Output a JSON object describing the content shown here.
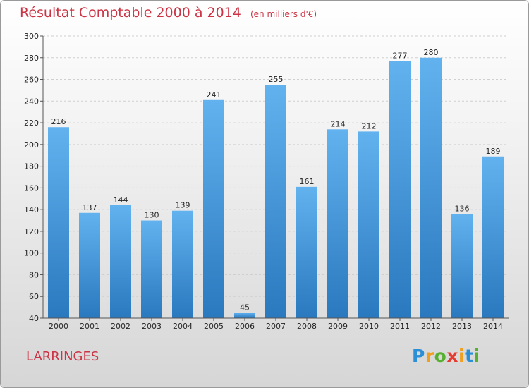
{
  "header": {
    "title": "Résultat Comptable 2000 à 2014",
    "unit": "(en milliers d'€)"
  },
  "commune": "LARRINGES",
  "logo": {
    "letters": [
      {
        "char": "P",
        "color": "#2a8fd6"
      },
      {
        "char": "r",
        "color": "#f0a020"
      },
      {
        "char": "o",
        "color": "#58b030"
      },
      {
        "char": "x",
        "color": "#e63a2e"
      },
      {
        "char": "i",
        "color": "#f0a020"
      },
      {
        "char": "t",
        "color": "#2a8fd6"
      },
      {
        "char": "i",
        "color": "#58b030"
      }
    ]
  },
  "colors": {
    "title": "#cc3344",
    "bar_top": "#62b2ef",
    "bar_bottom": "#2a78be",
    "grid": "#cfcfcf"
  },
  "chart_data": {
    "type": "bar",
    "title": "Résultat Comptable 2000 à 2014",
    "subtitle": "(en milliers d'€)",
    "categories": [
      "2000",
      "2001",
      "2002",
      "2003",
      "2004",
      "2005",
      "2006",
      "2007",
      "2008",
      "2009",
      "2010",
      "2011",
      "2012",
      "2013",
      "2014"
    ],
    "values": [
      216,
      137,
      144,
      130,
      139,
      241,
      45,
      255,
      161,
      214,
      212,
      277,
      280,
      136,
      189
    ],
    "ylim": [
      40,
      300
    ],
    "yticks": [
      40,
      60,
      80,
      100,
      120,
      140,
      160,
      180,
      200,
      220,
      240,
      260,
      280,
      300
    ],
    "grid": true,
    "xlabel": "",
    "ylabel": ""
  }
}
